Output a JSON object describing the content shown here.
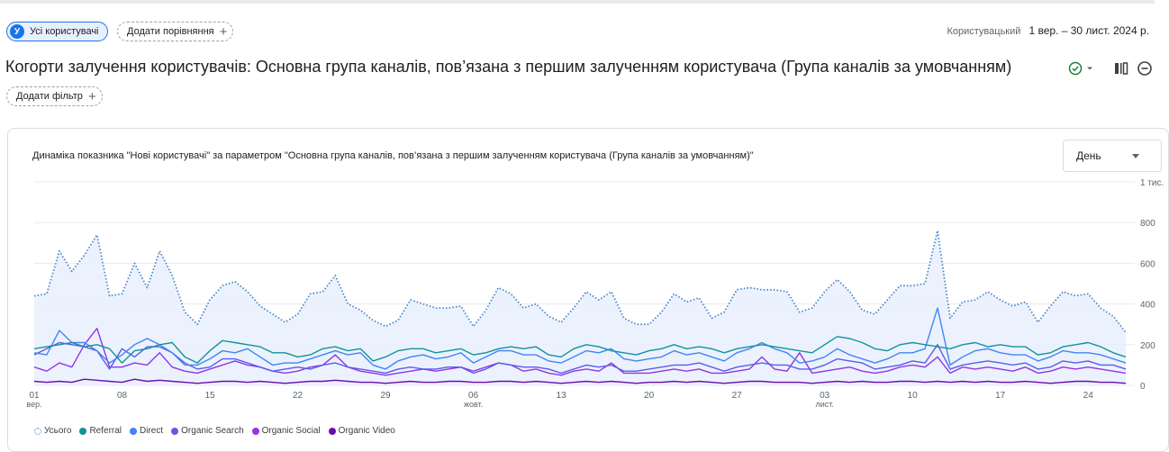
{
  "header": {
    "all_users_avatar": "У",
    "all_users_label": "Усі користувачі",
    "add_comparison_label": "Додати порівняння",
    "plus": "+",
    "date_type": "Користувацький",
    "date_range": "1 вер. – 30 лист. 2024 р."
  },
  "page": {
    "title": "Когорти залучення користувачів: Основна група каналів, пов’язана з першим залученням користувача (Група каналів за умовчанням)",
    "add_filter_label": "Додати фільтр"
  },
  "chart_controls": {
    "granularity": "День"
  },
  "colors": {
    "total": "#4a86c7",
    "total_fill": "#e8f0fe",
    "referral": "#12939a",
    "direct": "#4285f4",
    "organic_search": "#5c5ce6",
    "organic_social": "#9334e6",
    "organic_video": "#6a0dad",
    "grid": "#e8eaed"
  },
  "chart_data": {
    "type": "line",
    "title": "Динаміка показника \"Нові користувачі\" за параметром \"Основна група каналів, пов’язана з першим залученням користувача (Група каналів за умовчанням)\"",
    "xlabel": "",
    "ylabel": "",
    "ylim": [
      0,
      1000
    ],
    "y_ticks": [
      {
        "value": 0,
        "label": "0"
      },
      {
        "value": 200,
        "label": "200"
      },
      {
        "value": 400,
        "label": "400"
      },
      {
        "value": 600,
        "label": "600"
      },
      {
        "value": 800,
        "label": "800"
      },
      {
        "value": 1000,
        "label": "1 тис."
      }
    ],
    "x_ticks": [
      {
        "index": 0,
        "label": "01",
        "sublabel": "вер."
      },
      {
        "index": 7,
        "label": "08",
        "sublabel": ""
      },
      {
        "index": 14,
        "label": "15",
        "sublabel": ""
      },
      {
        "index": 21,
        "label": "22",
        "sublabel": ""
      },
      {
        "index": 28,
        "label": "29",
        "sublabel": ""
      },
      {
        "index": 35,
        "label": "06",
        "sublabel": "жовт."
      },
      {
        "index": 42,
        "label": "13",
        "sublabel": ""
      },
      {
        "index": 49,
        "label": "20",
        "sublabel": ""
      },
      {
        "index": 56,
        "label": "27",
        "sublabel": ""
      },
      {
        "index": 63,
        "label": "03",
        "sublabel": "лист."
      },
      {
        "index": 70,
        "label": "10",
        "sublabel": ""
      },
      {
        "index": 77,
        "label": "17",
        "sublabel": ""
      },
      {
        "index": 84,
        "label": "24",
        "sublabel": ""
      }
    ],
    "x_start": "2024-09-01",
    "x_end": "2024-11-30",
    "grid": true,
    "legend_position": "bottom-left",
    "series": [
      {
        "name": "Усього",
        "style": "dotted",
        "values": [
          440,
          450,
          660,
          560,
          640,
          740,
          440,
          450,
          600,
          480,
          660,
          540,
          360,
          300,
          420,
          490,
          510,
          460,
          390,
          350,
          310,
          350,
          450,
          460,
          540,
          400,
          370,
          320,
          290,
          320,
          420,
          400,
          380,
          380,
          390,
          290,
          370,
          480,
          450,
          380,
          400,
          340,
          310,
          380,
          460,
          420,
          460,
          330,
          300,
          300,
          360,
          450,
          410,
          430,
          330,
          360,
          470,
          480,
          470,
          470,
          460,
          360,
          380,
          460,
          520,
          460,
          370,
          350,
          420,
          490,
          490,
          500,
          760,
          330,
          410,
          420,
          460,
          420,
          390,
          410,
          310,
          390,
          460,
          440,
          450,
          380,
          340,
          260
        ]
      },
      {
        "name": "Referral",
        "style": "solid",
        "values": [
          180,
          190,
          200,
          210,
          190,
          200,
          180,
          110,
          170,
          180,
          200,
          210,
          140,
          110,
          170,
          220,
          210,
          200,
          190,
          160,
          160,
          140,
          150,
          180,
          190,
          170,
          180,
          120,
          140,
          170,
          180,
          180,
          160,
          170,
          180,
          150,
          160,
          180,
          190,
          180,
          190,
          150,
          140,
          180,
          200,
          190,
          170,
          160,
          150,
          170,
          180,
          200,
          180,
          190,
          180,
          160,
          180,
          190,
          200,
          190,
          180,
          170,
          160,
          200,
          240,
          230,
          210,
          180,
          170,
          200,
          210,
          200,
          190,
          180,
          200,
          210,
          190,
          200,
          190,
          190,
          150,
          160,
          190,
          200,
          210,
          190,
          160,
          140
        ]
      },
      {
        "name": "Direct",
        "style": "solid",
        "values": [
          160,
          150,
          270,
          210,
          210,
          170,
          110,
          150,
          200,
          230,
          200,
          160,
          100,
          100,
          130,
          170,
          160,
          180,
          140,
          100,
          110,
          110,
          130,
          150,
          170,
          150,
          160,
          100,
          80,
          120,
          140,
          150,
          130,
          140,
          160,
          110,
          140,
          170,
          170,
          150,
          150,
          120,
          110,
          140,
          170,
          160,
          180,
          130,
          120,
          130,
          140,
          170,
          150,
          160,
          140,
          120,
          160,
          180,
          210,
          180,
          160,
          110,
          120,
          140,
          180,
          150,
          130,
          110,
          130,
          160,
          160,
          180,
          380,
          100,
          140,
          170,
          180,
          160,
          150,
          150,
          120,
          140,
          170,
          160,
          160,
          150,
          130,
          110
        ]
      },
      {
        "name": "Organic Search",
        "style": "solid",
        "values": [
          150,
          180,
          210,
          200,
          190,
          170,
          80,
          180,
          140,
          190,
          190,
          160,
          110,
          80,
          90,
          130,
          130,
          110,
          90,
          70,
          80,
          90,
          80,
          100,
          110,
          90,
          80,
          70,
          60,
          80,
          90,
          80,
          80,
          90,
          90,
          60,
          80,
          110,
          100,
          90,
          90,
          80,
          60,
          80,
          100,
          90,
          100,
          70,
          70,
          80,
          90,
          100,
          100,
          110,
          90,
          70,
          90,
          100,
          110,
          100,
          100,
          80,
          80,
          100,
          130,
          120,
          110,
          80,
          90,
          100,
          120,
          110,
          200,
          80,
          100,
          110,
          120,
          110,
          100,
          110,
          80,
          90,
          120,
          110,
          120,
          100,
          100,
          80
        ]
      },
      {
        "name": "Organic Social",
        "style": "solid",
        "values": [
          90,
          70,
          110,
          90,
          200,
          280,
          90,
          90,
          110,
          100,
          160,
          90,
          70,
          60,
          80,
          100,
          120,
          100,
          90,
          70,
          60,
          70,
          90,
          100,
          150,
          90,
          70,
          60,
          50,
          60,
          70,
          80,
          70,
          80,
          90,
          70,
          90,
          110,
          100,
          70,
          80,
          60,
          50,
          70,
          80,
          70,
          110,
          60,
          60,
          60,
          70,
          80,
          70,
          80,
          60,
          60,
          70,
          80,
          140,
          80,
          70,
          160,
          60,
          70,
          80,
          90,
          70,
          60,
          70,
          90,
          100,
          90,
          140,
          60,
          90,
          80,
          90,
          80,
          70,
          90,
          60,
          70,
          90,
          80,
          90,
          80,
          70,
          60
        ]
      },
      {
        "name": "Organic Video",
        "style": "solid",
        "values": [
          20,
          15,
          20,
          15,
          30,
          25,
          20,
          15,
          30,
          20,
          25,
          20,
          15,
          10,
          15,
          20,
          20,
          15,
          20,
          15,
          10,
          15,
          20,
          20,
          25,
          20,
          15,
          15,
          10,
          15,
          20,
          15,
          15,
          20,
          20,
          15,
          15,
          20,
          20,
          15,
          20,
          15,
          10,
          15,
          20,
          15,
          20,
          15,
          10,
          15,
          15,
          20,
          15,
          20,
          15,
          10,
          15,
          20,
          20,
          15,
          15,
          15,
          10,
          15,
          20,
          15,
          20,
          15,
          15,
          20,
          20,
          15,
          20,
          15,
          20,
          15,
          20,
          15,
          15,
          20,
          15,
          10,
          15,
          20,
          20,
          15,
          15,
          10
        ]
      }
    ]
  }
}
